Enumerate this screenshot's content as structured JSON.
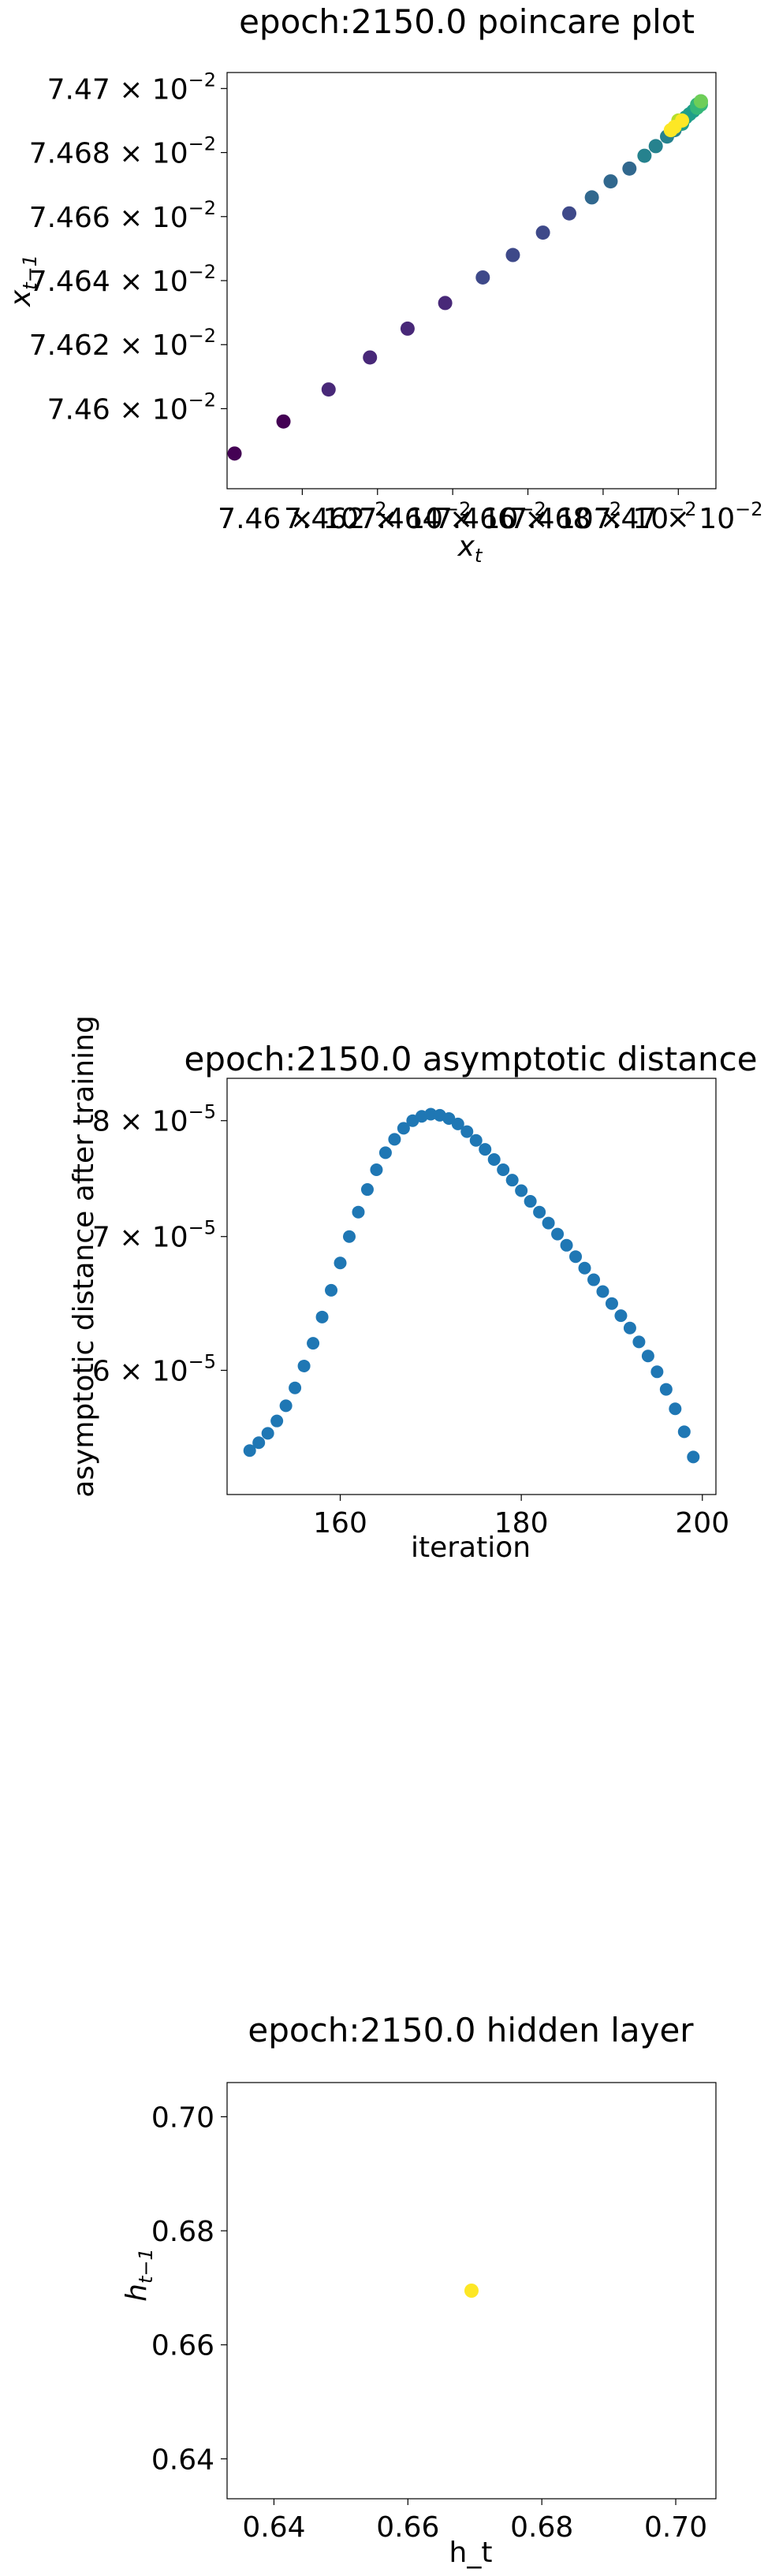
{
  "chart_data": [
    {
      "type": "scatter",
      "title": "epoch:2150.0 poincare plot",
      "xlabel_base": "x",
      "xlabel_sub": "t",
      "ylabel_base": "x",
      "ylabel_sub": "t−1",
      "xlim": [
        0.07458,
        0.07471
      ],
      "ylim": [
        0.074575,
        0.074705
      ],
      "x_ticks": [
        {
          "value": 0.0746,
          "mantissa": "7.46",
          "exponent": "−2"
        },
        {
          "value": 0.07462,
          "mantissa": "7.462",
          "exponent": "−2"
        },
        {
          "value": 0.07464,
          "mantissa": "7.464",
          "exponent": "−2"
        },
        {
          "value": 0.07466,
          "mantissa": "7.466",
          "exponent": "−2"
        },
        {
          "value": 0.07468,
          "mantissa": "7.468",
          "exponent": "−2"
        },
        {
          "value": 0.0747,
          "mantissa": "7.47",
          "exponent": "−2"
        }
      ],
      "y_ticks": [
        {
          "value": 0.0746,
          "mantissa": "7.46",
          "exponent": "−2"
        },
        {
          "value": 0.07462,
          "mantissa": "7.462",
          "exponent": "−2"
        },
        {
          "value": 0.07464,
          "mantissa": "7.464",
          "exponent": "−2"
        },
        {
          "value": 0.07466,
          "mantissa": "7.466",
          "exponent": "−2"
        },
        {
          "value": 0.07468,
          "mantissa": "7.468",
          "exponent": "−2"
        },
        {
          "value": 0.0747,
          "mantissa": "7.47",
          "exponent": "−2"
        }
      ],
      "colormap": [
        "#440154",
        "#482878",
        "#3e4989",
        "#31688e",
        "#26828e",
        "#1f9e89",
        "#35b779",
        "#6ece58",
        "#b5de2b",
        "#fde725"
      ],
      "points": [
        {
          "x": 0.074582,
          "y": 0.074586,
          "c": 0.0
        },
        {
          "x": 0.074595,
          "y": 0.074596,
          "c": 0.03
        },
        {
          "x": 0.074607,
          "y": 0.074606,
          "c": 0.06
        },
        {
          "x": 0.074618,
          "y": 0.074616,
          "c": 0.09
        },
        {
          "x": 0.074628,
          "y": 0.074625,
          "c": 0.12
        },
        {
          "x": 0.074638,
          "y": 0.074633,
          "c": 0.15
        },
        {
          "x": 0.074648,
          "y": 0.074641,
          "c": 0.18
        },
        {
          "x": 0.074656,
          "y": 0.074648,
          "c": 0.21
        },
        {
          "x": 0.074664,
          "y": 0.074655,
          "c": 0.24
        },
        {
          "x": 0.074671,
          "y": 0.074661,
          "c": 0.27
        },
        {
          "x": 0.074677,
          "y": 0.074666,
          "c": 0.3
        },
        {
          "x": 0.074682,
          "y": 0.074671,
          "c": 0.33
        },
        {
          "x": 0.074687,
          "y": 0.074675,
          "c": 0.36
        },
        {
          "x": 0.074691,
          "y": 0.074679,
          "c": 0.39
        },
        {
          "x": 0.074694,
          "y": 0.074682,
          "c": 0.42
        },
        {
          "x": 0.074697,
          "y": 0.074685,
          "c": 0.45
        },
        {
          "x": 0.074699,
          "y": 0.074687,
          "c": 0.48
        },
        {
          "x": 0.074701,
          "y": 0.074689,
          "c": 0.51
        },
        {
          "x": 0.074702,
          "y": 0.074691,
          "c": 0.54
        },
        {
          "x": 0.074703,
          "y": 0.074692,
          "c": 0.57
        },
        {
          "x": 0.074704,
          "y": 0.074693,
          "c": 0.6
        },
        {
          "x": 0.074705,
          "y": 0.074694,
          "c": 0.63
        },
        {
          "x": 0.074705,
          "y": 0.074695,
          "c": 0.66
        },
        {
          "x": 0.074706,
          "y": 0.074695,
          "c": 0.69
        },
        {
          "x": 0.074706,
          "y": 0.074696,
          "c": 0.72
        },
        {
          "x": 0.074706,
          "y": 0.074696,
          "c": 0.75
        },
        {
          "x": 0.0747,
          "y": 0.07469,
          "c": 0.9
        },
        {
          "x": 0.074699,
          "y": 0.074688,
          "c": 1.0
        },
        {
          "x": 0.074701,
          "y": 0.07469,
          "c": 1.0
        },
        {
          "x": 0.074698,
          "y": 0.074687,
          "c": 1.0
        }
      ]
    },
    {
      "type": "scatter",
      "title": "epoch:2150.0 asymptotic distance",
      "xlabel": "iteration",
      "ylabel": "asymptotic distance after training",
      "yscale": "log",
      "color": "#1f77b4",
      "xlim": [
        147.5,
        201.5
      ],
      "ylim": [
        5.2e-05,
        8.4e-05
      ],
      "x_ticks": [
        160,
        180,
        200
      ],
      "y_ticks": [
        {
          "value": 6e-05,
          "mantissa": "6",
          "exponent": "−5"
        },
        {
          "value": 7e-05,
          "mantissa": "7",
          "exponent": "−5"
        },
        {
          "value": 8e-05,
          "mantissa": "8",
          "exponent": "−5"
        }
      ],
      "x": [
        150,
        151,
        152,
        153,
        154,
        155,
        156,
        157,
        158,
        159,
        160,
        161,
        162,
        163,
        164,
        165,
        166,
        167,
        168,
        169,
        170,
        171,
        172,
        173,
        174,
        175,
        176,
        177,
        178,
        179,
        180,
        181,
        182,
        183,
        184,
        185,
        186,
        187,
        188,
        189,
        190,
        191,
        192,
        193,
        194,
        195,
        196,
        197,
        198,
        199
      ],
      "y": [
        5.47e-05,
        5.52e-05,
        5.58e-05,
        5.66e-05,
        5.76e-05,
        5.88e-05,
        6.03e-05,
        6.19e-05,
        6.38e-05,
        6.58e-05,
        6.79e-05,
        7e-05,
        7.2e-05,
        7.39e-05,
        7.56e-05,
        7.71e-05,
        7.83e-05,
        7.93e-05,
        8e-05,
        8.04e-05,
        8.06e-05,
        8.05e-05,
        8.02e-05,
        7.97e-05,
        7.9e-05,
        7.82e-05,
        7.74e-05,
        7.65e-05,
        7.56e-05,
        7.47e-05,
        7.38e-05,
        7.29e-05,
        7.2e-05,
        7.11e-05,
        7.02e-05,
        6.93e-05,
        6.84e-05,
        6.75e-05,
        6.66e-05,
        6.57e-05,
        6.48e-05,
        6.39e-05,
        6.3e-05,
        6.2e-05,
        6.1e-05,
        5.99e-05,
        5.87e-05,
        5.74e-05,
        5.59e-05,
        5.43e-05
      ]
    },
    {
      "type": "scatter",
      "title": "epoch:2150.0 hidden layer",
      "xlabel": "h_t",
      "ylabel_base": "h",
      "ylabel_sub": "t−1",
      "xlim": [
        0.633,
        0.706
      ],
      "ylim": [
        0.633,
        0.706
      ],
      "x_ticks": [
        "0.64",
        "0.66",
        "0.68",
        "0.70"
      ],
      "y_ticks": [
        "0.64",
        "0.66",
        "0.68",
        "0.70"
      ],
      "color": "#fde725",
      "points": [
        {
          "x": 0.6695,
          "y": 0.6695
        }
      ]
    }
  ]
}
